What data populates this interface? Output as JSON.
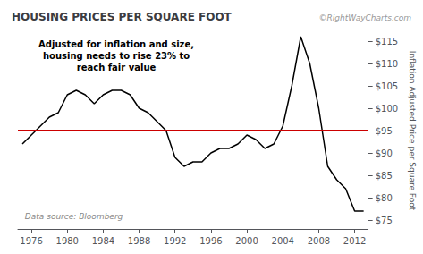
{
  "chart_data": {
    "type": "line",
    "title": "HOUSING PRICES PER SQUARE FOOT",
    "watermark": "©RightWayCharts.com",
    "annotation": "Adjusted for inflation and size,\nhousing needs to rise 23% to\nreach fair value",
    "source": "Data source: Bloomberg",
    "ylabel": "Inflation Adjusted Price per Square Foot",
    "x": [
      1975,
      1976,
      1977,
      1978,
      1979,
      1980,
      1981,
      1982,
      1983,
      1984,
      1985,
      1986,
      1987,
      1988,
      1989,
      1990,
      1991,
      1992,
      1993,
      1994,
      1995,
      1996,
      1997,
      1998,
      1999,
      2000,
      2001,
      2002,
      2003,
      2004,
      2005,
      2006,
      2007,
      2008,
      2009,
      2010,
      2011,
      2012,
      2013
    ],
    "values": [
      92,
      94,
      96,
      98,
      99,
      103,
      104,
      103,
      101,
      103,
      104,
      104,
      103,
      100,
      99,
      97,
      95,
      89,
      87,
      88,
      88,
      90,
      91,
      91,
      92,
      94,
      93,
      91,
      92,
      96,
      105,
      116,
      110,
      100,
      87,
      84,
      82,
      77,
      77
    ],
    "color": "#000000",
    "hline": {
      "value": 95,
      "color": "#cc0000"
    },
    "xlim": [
      1974.5,
      2013.5
    ],
    "xticks": [
      1976,
      1980,
      1984,
      1988,
      1992,
      1996,
      2000,
      2004,
      2008,
      2012
    ],
    "ylim": [
      73,
      117
    ],
    "yticks": [
      {
        "value": 75,
        "label": "$75"
      },
      {
        "value": 80,
        "label": "$80"
      },
      {
        "value": 85,
        "label": "$85"
      },
      {
        "value": 90,
        "label": "$90"
      },
      {
        "value": 95,
        "label": "$95"
      },
      {
        "value": 100,
        "label": "$100"
      },
      {
        "value": 105,
        "label": "$105"
      },
      {
        "value": 110,
        "label": "$110"
      },
      {
        "value": 115,
        "label": "$115"
      }
    ],
    "grid": false
  }
}
